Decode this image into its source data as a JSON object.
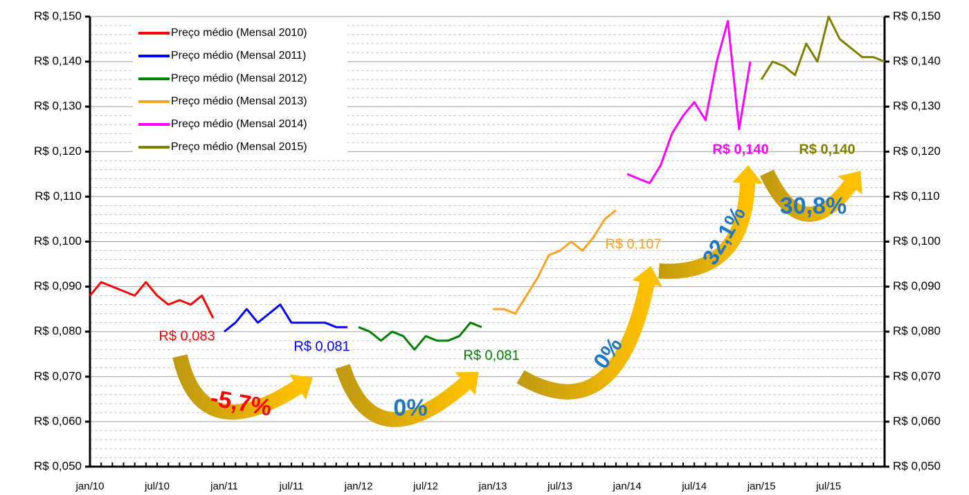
{
  "chart_data": {
    "type": "line",
    "categories": [
      "jan/10",
      null,
      null,
      null,
      null,
      null,
      "jul/10",
      null,
      null,
      null,
      null,
      null,
      "jan/11",
      null,
      null,
      null,
      null,
      null,
      "jul/11",
      null,
      null,
      null,
      null,
      null,
      "jan/12",
      null,
      null,
      null,
      null,
      null,
      "jul/12",
      null,
      null,
      null,
      null,
      null,
      "jan/13",
      null,
      null,
      null,
      null,
      null,
      "jul/13",
      null,
      null,
      null,
      null,
      null,
      "jan/14",
      null,
      null,
      null,
      null,
      null,
      "jul/14",
      null,
      null,
      null,
      null,
      null,
      "jan/15",
      null,
      null,
      null,
      null,
      null,
      "jul/15",
      null,
      null,
      null,
      null,
      null
    ],
    "series": [
      {
        "name": "Preço médio (Mensal 2010)",
        "color": "#ff0000",
        "values": [
          0.088,
          0.091,
          0.09,
          0.089,
          0.088,
          0.091,
          0.088,
          0.086,
          0.087,
          0.086,
          0.088,
          0.083,
          null,
          null,
          null,
          null,
          null,
          null,
          null,
          null,
          null,
          null,
          null,
          null,
          null,
          null,
          null,
          null,
          null,
          null,
          null,
          null,
          null,
          null,
          null,
          null,
          null,
          null,
          null,
          null,
          null,
          null,
          null,
          null,
          null,
          null,
          null,
          null,
          null,
          null,
          null,
          null,
          null,
          null,
          null,
          null,
          null,
          null,
          null,
          null,
          null,
          null,
          null,
          null,
          null,
          null,
          null,
          null,
          null,
          null,
          null,
          null
        ]
      },
      {
        "name": "Preço médio (Mensal 2011)",
        "color": "#0000ff",
        "values": [
          null,
          null,
          null,
          null,
          null,
          null,
          null,
          null,
          null,
          null,
          null,
          null,
          0.08,
          0.082,
          0.085,
          0.082,
          0.084,
          0.086,
          0.082,
          0.082,
          0.082,
          0.082,
          0.081,
          0.081,
          null,
          null,
          null,
          null,
          null,
          null,
          null,
          null,
          null,
          null,
          null,
          null,
          null,
          null,
          null,
          null,
          null,
          null,
          null,
          null,
          null,
          null,
          null,
          null,
          null,
          null,
          null,
          null,
          null,
          null,
          null,
          null,
          null,
          null,
          null,
          null,
          null,
          null,
          null,
          null,
          null,
          null,
          null,
          null,
          null,
          null,
          null,
          null
        ]
      },
      {
        "name": "Preço médio (Mensal 2012)",
        "color": "#008000",
        "values": [
          null,
          null,
          null,
          null,
          null,
          null,
          null,
          null,
          null,
          null,
          null,
          null,
          null,
          null,
          null,
          null,
          null,
          null,
          null,
          null,
          null,
          null,
          null,
          null,
          0.081,
          0.08,
          0.078,
          0.08,
          0.079,
          0.076,
          0.079,
          0.078,
          0.078,
          0.079,
          0.082,
          0.081,
          null,
          null,
          null,
          null,
          null,
          null,
          null,
          null,
          null,
          null,
          null,
          null,
          null,
          null,
          null,
          null,
          null,
          null,
          null,
          null,
          null,
          null,
          null,
          null,
          null,
          null,
          null,
          null,
          null,
          null,
          null,
          null,
          null,
          null,
          null,
          null
        ]
      },
      {
        "name": "Preço médio (Mensal 2013)",
        "color": "#ffa020",
        "values": [
          null,
          null,
          null,
          null,
          null,
          null,
          null,
          null,
          null,
          null,
          null,
          null,
          null,
          null,
          null,
          null,
          null,
          null,
          null,
          null,
          null,
          null,
          null,
          null,
          null,
          null,
          null,
          null,
          null,
          null,
          null,
          null,
          null,
          null,
          null,
          null,
          0.085,
          0.085,
          0.084,
          0.088,
          0.092,
          0.097,
          0.098,
          0.1,
          0.098,
          0.101,
          0.105,
          0.107,
          null,
          null,
          null,
          null,
          null,
          null,
          null,
          null,
          null,
          null,
          null,
          null,
          null,
          null,
          null,
          null,
          null,
          null,
          null,
          null,
          null,
          null,
          null,
          null
        ]
      },
      {
        "name": "Preço médio (Mensal 2014)",
        "color": "#ff00ff",
        "values": [
          null,
          null,
          null,
          null,
          null,
          null,
          null,
          null,
          null,
          null,
          null,
          null,
          null,
          null,
          null,
          null,
          null,
          null,
          null,
          null,
          null,
          null,
          null,
          null,
          null,
          null,
          null,
          null,
          null,
          null,
          null,
          null,
          null,
          null,
          null,
          null,
          null,
          null,
          null,
          null,
          null,
          null,
          null,
          null,
          null,
          null,
          null,
          null,
          0.115,
          0.114,
          0.113,
          0.117,
          0.124,
          0.128,
          0.131,
          0.127,
          0.14,
          0.149,
          0.125,
          0.14,
          null,
          null,
          null,
          null,
          null,
          null,
          null,
          null,
          null,
          null,
          null,
          null
        ]
      },
      {
        "name": "Preço médio (Mensal 2015)",
        "color": "#808000",
        "values": [
          null,
          null,
          null,
          null,
          null,
          null,
          null,
          null,
          null,
          null,
          null,
          null,
          null,
          null,
          null,
          null,
          null,
          null,
          null,
          null,
          null,
          null,
          null,
          null,
          null,
          null,
          null,
          null,
          null,
          null,
          null,
          null,
          null,
          null,
          null,
          null,
          null,
          null,
          null,
          null,
          null,
          null,
          null,
          null,
          null,
          null,
          null,
          null,
          null,
          null,
          null,
          null,
          null,
          null,
          null,
          null,
          null,
          null,
          null,
          null,
          0.136,
          0.14,
          0.139,
          0.137,
          0.144,
          0.14,
          0.15,
          0.145,
          0.143,
          0.141,
          0.141,
          0.14
        ]
      }
    ],
    "ylim": [
      0.05,
      0.15
    ],
    "yticks": [
      {
        "value": 0.05,
        "label": "R$ 0,050"
      },
      {
        "value": 0.06,
        "label": "R$ 0,060"
      },
      {
        "value": 0.07,
        "label": "R$ 0,070"
      },
      {
        "value": 0.08,
        "label": "R$ 0,080"
      },
      {
        "value": 0.09,
        "label": "R$ 0,090"
      },
      {
        "value": 0.1,
        "label": "R$ 0,100"
      },
      {
        "value": 0.11,
        "label": "R$ 0,110"
      },
      {
        "value": 0.12,
        "label": "R$ 0,120"
      },
      {
        "value": 0.13,
        "label": "R$ 0,130"
      },
      {
        "value": 0.14,
        "label": "R$ 0,140"
      },
      {
        "value": 0.15,
        "label": "R$ 0,150"
      }
    ],
    "y2lim": [
      0.05,
      0.15
    ],
    "y2ticks": [
      {
        "value": 0.05,
        "label": "R$ 0,050"
      },
      {
        "value": 0.06,
        "label": "R$ 0,060"
      },
      {
        "value": 0.07,
        "label": "R$ 0,070"
      },
      {
        "value": 0.08,
        "label": "R$ 0,080"
      },
      {
        "value": 0.09,
        "label": "R$ 0,090"
      },
      {
        "value": 0.1,
        "label": "R$ 0,100"
      },
      {
        "value": 0.11,
        "label": "R$ 0,110"
      },
      {
        "value": 0.12,
        "label": "R$ 0,120"
      },
      {
        "value": 0.13,
        "label": "R$ 0,130"
      },
      {
        "value": 0.14,
        "label": "R$ 0,140"
      },
      {
        "value": 0.15,
        "label": "R$ 0,150"
      }
    ],
    "grid": true,
    "legend": "top-left",
    "annotations": [
      {
        "text": "R$ 0,083",
        "color": "#ff0000"
      },
      {
        "text": "R$ 0,081",
        "color": "#0000ff"
      },
      {
        "text": "R$ 0,081",
        "color": "#008000"
      },
      {
        "text": "R$ 0,107",
        "color": "#ffa020"
      },
      {
        "text": "R$ 0,140",
        "color": "#ff00ff"
      },
      {
        "text": "R$ 0,140",
        "color": "#808000"
      },
      {
        "text": "-5,7%",
        "color": "#ff0000"
      },
      {
        "text": "0%",
        "color": "#1f77c4"
      },
      {
        "text": "0%",
        "color": "#1f77c4"
      },
      {
        "text": "32,1%",
        "color": "#1f77c4"
      },
      {
        "text": "30,8%",
        "color": "#1f77c4"
      }
    ]
  }
}
